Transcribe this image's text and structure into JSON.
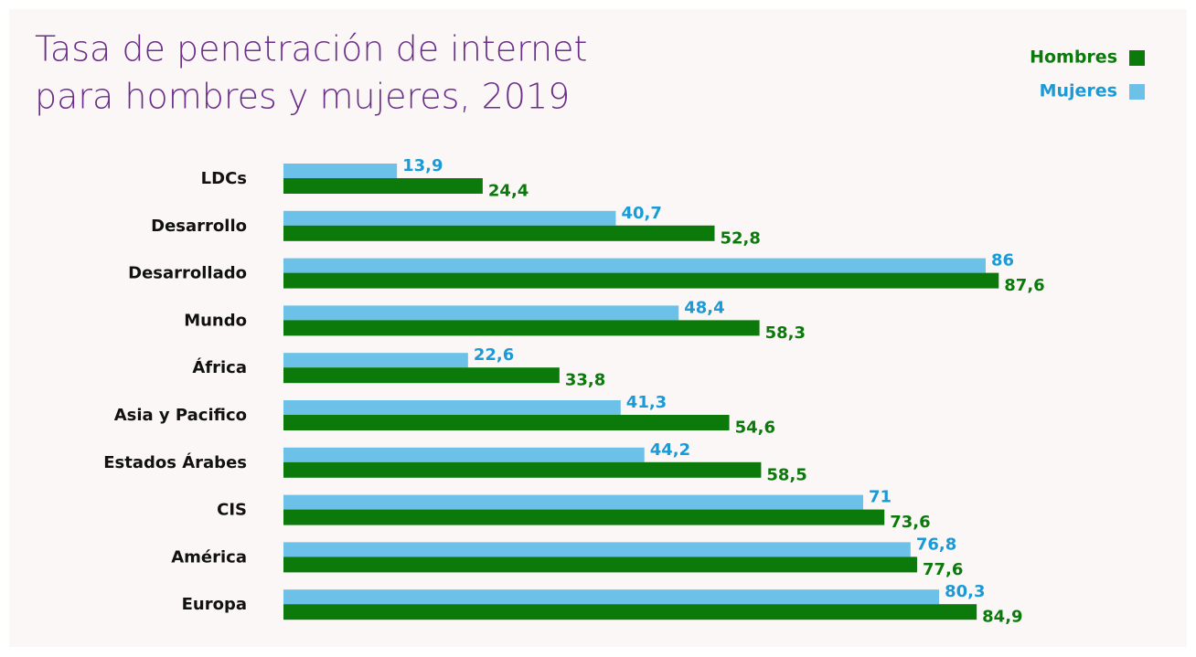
{
  "chart_data": {
    "type": "hbar",
    "title": [
      "Tasa de penetración de internet",
      "para hombres y mujeres, 2019"
    ],
    "categories": [
      "LDCs",
      "Desarrollo",
      "Desarrollado",
      "Mundo",
      "África",
      "Asia y Pacifico",
      "Estados Árabes",
      "CIS",
      "América",
      "Europa"
    ],
    "series": [
      {
        "name": "Hombres",
        "color": "#0b7a0b",
        "label_color": "#0b7a0b",
        "values": [
          24.4,
          52.8,
          87.6,
          58.3,
          33.8,
          54.6,
          58.5,
          73.6,
          77.6,
          84.9
        ],
        "value_labels": [
          "24,4",
          "52,8",
          "87,6",
          "58,3",
          "33,8",
          "54,6",
          "58,5",
          "73,6",
          "77,6",
          "84,9"
        ]
      },
      {
        "name": "Mujeres",
        "color": "#6cc1e8",
        "label_color": "#1a9ad6",
        "values": [
          13.9,
          40.7,
          86,
          48.4,
          22.6,
          41.3,
          44.2,
          71,
          76.8,
          80.3
        ],
        "value_labels": [
          "13,9",
          "40,7",
          "86",
          "48,4",
          "22,6",
          "41,3",
          "44,2",
          "71",
          "76,8",
          "80,3"
        ]
      }
    ],
    "xlim": [
      0,
      100
    ],
    "legend": "top-right",
    "title_color": "#6b2d8a"
  }
}
